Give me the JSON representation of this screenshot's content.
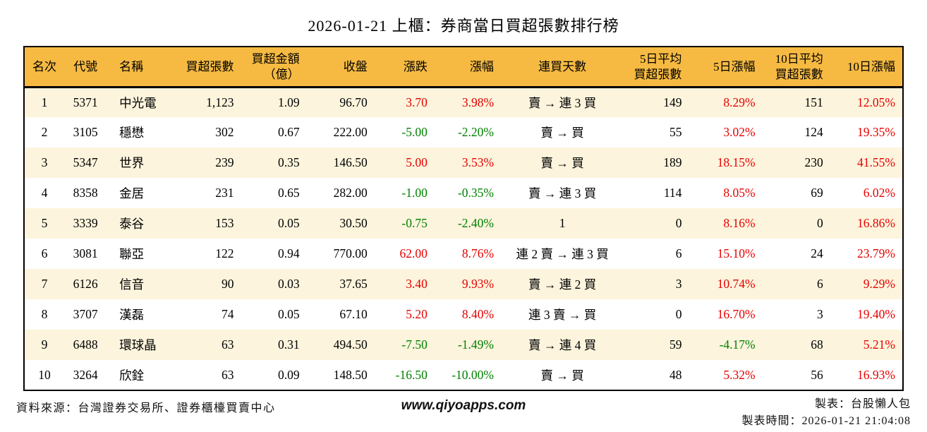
{
  "title": "2026-01-21 上櫃：券商當日買超張數排行榜",
  "chart_data": {
    "type": "table",
    "title": "2026-01-21 上櫃：券商當日買超張數排行榜",
    "legend": "red = rise, green = decline",
    "columns": [
      {
        "key": "rank",
        "label": "名次",
        "align": "center",
        "colored": false
      },
      {
        "key": "code",
        "label": "代號",
        "align": "center",
        "colored": false
      },
      {
        "key": "name",
        "label": "名稱",
        "align": "left",
        "colored": false
      },
      {
        "key": "net_buy",
        "label": "買超張數",
        "align": "right",
        "colored": false
      },
      {
        "key": "amount",
        "label": "買超金額\n（億）",
        "align": "right",
        "colored": false
      },
      {
        "key": "close",
        "label": "收盤",
        "align": "right",
        "colored": false
      },
      {
        "key": "change",
        "label": "漲跌",
        "align": "right",
        "colored": true
      },
      {
        "key": "change_pct",
        "label": "漲幅",
        "align": "right",
        "colored": true
      },
      {
        "key": "streak",
        "label": "連買天數",
        "align": "center",
        "colored": false
      },
      {
        "key": "avg5",
        "label": "5日平均\n買超張數",
        "align": "right",
        "colored": false
      },
      {
        "key": "pct5",
        "label": "5日漲幅",
        "align": "right",
        "colored": true
      },
      {
        "key": "avg10",
        "label": "10日平均\n買超張數",
        "align": "right",
        "colored": false
      },
      {
        "key": "pct10",
        "label": "10日漲幅",
        "align": "right",
        "colored": true
      }
    ],
    "rows": [
      {
        "rank": "1",
        "code": "5371",
        "name": "中光電",
        "net_buy": "1,123",
        "amount": "1.09",
        "close": "96.70",
        "change": "3.70",
        "change_pct": "3.98%",
        "streak": "賣 → 連 3 買",
        "avg5": "149",
        "pct5": "8.29%",
        "avg10": "151",
        "pct10": "12.05%"
      },
      {
        "rank": "2",
        "code": "3105",
        "name": "穩懋",
        "net_buy": "302",
        "amount": "0.67",
        "close": "222.00",
        "change": "-5.00",
        "change_pct": "-2.20%",
        "streak": "賣 → 買",
        "avg5": "55",
        "pct5": "3.02%",
        "avg10": "124",
        "pct10": "19.35%"
      },
      {
        "rank": "3",
        "code": "5347",
        "name": "世界",
        "net_buy": "239",
        "amount": "0.35",
        "close": "146.50",
        "change": "5.00",
        "change_pct": "3.53%",
        "streak": "賣 → 買",
        "avg5": "189",
        "pct5": "18.15%",
        "avg10": "230",
        "pct10": "41.55%"
      },
      {
        "rank": "4",
        "code": "8358",
        "name": "金居",
        "net_buy": "231",
        "amount": "0.65",
        "close": "282.00",
        "change": "-1.00",
        "change_pct": "-0.35%",
        "streak": "賣 → 連 3 買",
        "avg5": "114",
        "pct5": "8.05%",
        "avg10": "69",
        "pct10": "6.02%"
      },
      {
        "rank": "5",
        "code": "3339",
        "name": "泰谷",
        "net_buy": "153",
        "amount": "0.05",
        "close": "30.50",
        "change": "-0.75",
        "change_pct": "-2.40%",
        "streak": "1",
        "avg5": "0",
        "pct5": "8.16%",
        "avg10": "0",
        "pct10": "16.86%"
      },
      {
        "rank": "6",
        "code": "3081",
        "name": "聯亞",
        "net_buy": "122",
        "amount": "0.94",
        "close": "770.00",
        "change": "62.00",
        "change_pct": "8.76%",
        "streak": "連 2 賣 → 連 3 買",
        "avg5": "6",
        "pct5": "15.10%",
        "avg10": "24",
        "pct10": "23.79%"
      },
      {
        "rank": "7",
        "code": "6126",
        "name": "信音",
        "net_buy": "90",
        "amount": "0.03",
        "close": "37.65",
        "change": "3.40",
        "change_pct": "9.93%",
        "streak": "賣 → 連 2 買",
        "avg5": "3",
        "pct5": "10.74%",
        "avg10": "6",
        "pct10": "9.29%"
      },
      {
        "rank": "8",
        "code": "3707",
        "name": "漢磊",
        "net_buy": "74",
        "amount": "0.05",
        "close": "67.10",
        "change": "5.20",
        "change_pct": "8.40%",
        "streak": "連 3 賣 → 買",
        "avg5": "0",
        "pct5": "16.70%",
        "avg10": "3",
        "pct10": "19.40%"
      },
      {
        "rank": "9",
        "code": "6488",
        "name": "環球晶",
        "net_buy": "63",
        "amount": "0.31",
        "close": "494.50",
        "change": "-7.50",
        "change_pct": "-1.49%",
        "streak": "賣 → 連 4 買",
        "avg5": "59",
        "pct5": "-4.17%",
        "avg10": "68",
        "pct10": "5.21%"
      },
      {
        "rank": "10",
        "code": "3264",
        "name": "欣銓",
        "net_buy": "63",
        "amount": "0.09",
        "close": "148.50",
        "change": "-16.50",
        "change_pct": "-10.00%",
        "streak": "賣 → 買",
        "avg5": "48",
        "pct5": "5.32%",
        "avg10": "56",
        "pct10": "16.93%"
      }
    ]
  },
  "footer": {
    "source": "資料來源：台灣證券交易所、證券櫃檯買賣中心",
    "website": "www.qiyoapps.com",
    "maker": "製表：台股懶人包",
    "made_at": "製表時間：2026-01-21 21:04:08"
  },
  "colors": {
    "up": "#e60000",
    "down": "#008000",
    "header_bg": "#f6ba42",
    "row_alt": "#fcf4dc",
    "border": "#000000"
  }
}
